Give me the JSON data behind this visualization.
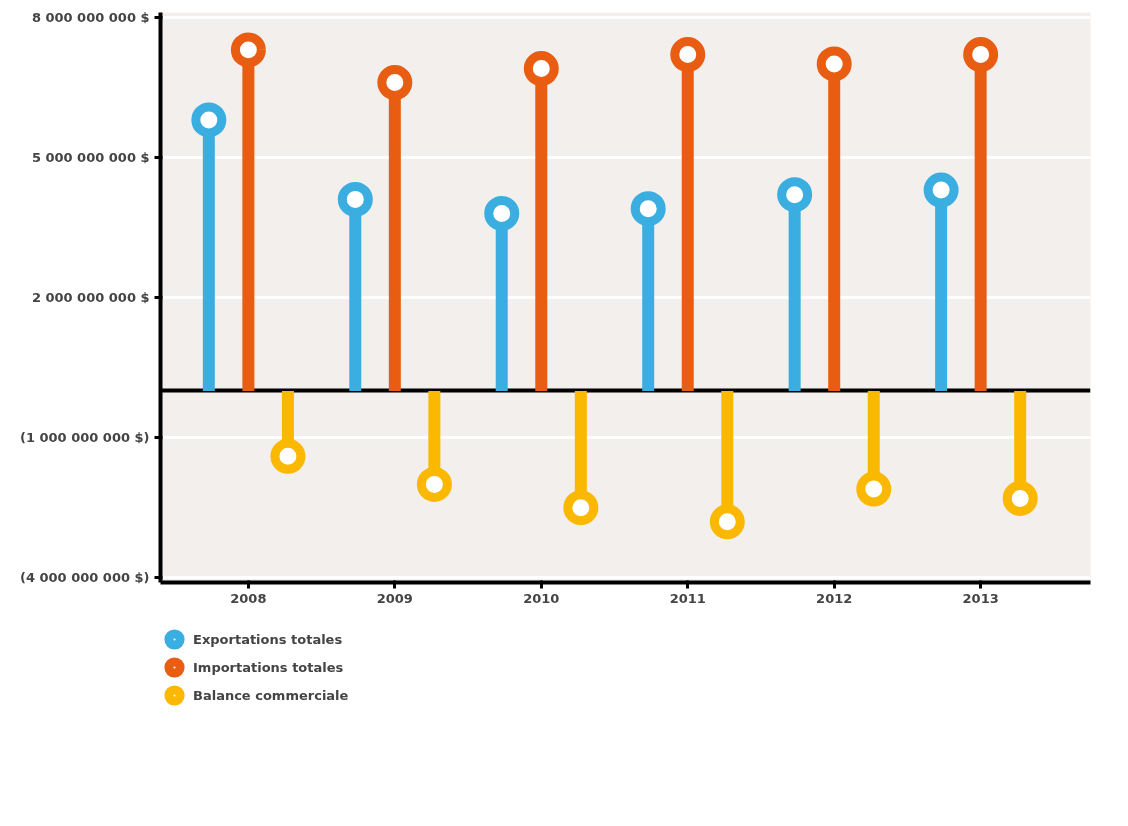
{
  "chart_data": {
    "type": "lollipop",
    "categories": [
      "2008",
      "2009",
      "2010",
      "2011",
      "2012",
      "2013"
    ],
    "series": [
      {
        "name": "Exportations totales",
        "color": "#3aaee0",
        "values": [
          5800000000.0,
          4100000000.0,
          3800000000.0,
          3900000000.0,
          4200000000.0,
          4300000000.0
        ]
      },
      {
        "name": "Importations totales",
        "color": "#e85d12",
        "values": [
          7300000000.0,
          6600000000.0,
          6900000000.0,
          7200000000.0,
          7000000000.0,
          7200000000.0
        ]
      },
      {
        "name": "Balance commerciale",
        "color": "#fbb800",
        "values": [
          -1400000000.0,
          -2000000000.0,
          -2500000000.0,
          -2800000000.0,
          -2100000000.0,
          -2300000000.0
        ]
      }
    ],
    "ylim": [
      -4100000000.0,
      8100000000.0
    ],
    "yticks": [
      {
        "value": 8000000000.0,
        "label": "8 000 000 000 $"
      },
      {
        "value": 5000000000.0,
        "label": "5 000 000 000 $"
      },
      {
        "value": 2000000000.0,
        "label": "2 000 000 000 $"
      },
      {
        "value": -1000000000.0,
        "label": "(1 000 000 000 $)"
      },
      {
        "value": -4000000000.0,
        "label": "(4 000 000 000 $)"
      }
    ],
    "grid": "y",
    "legend": "bottom left",
    "marker": "circle"
  }
}
